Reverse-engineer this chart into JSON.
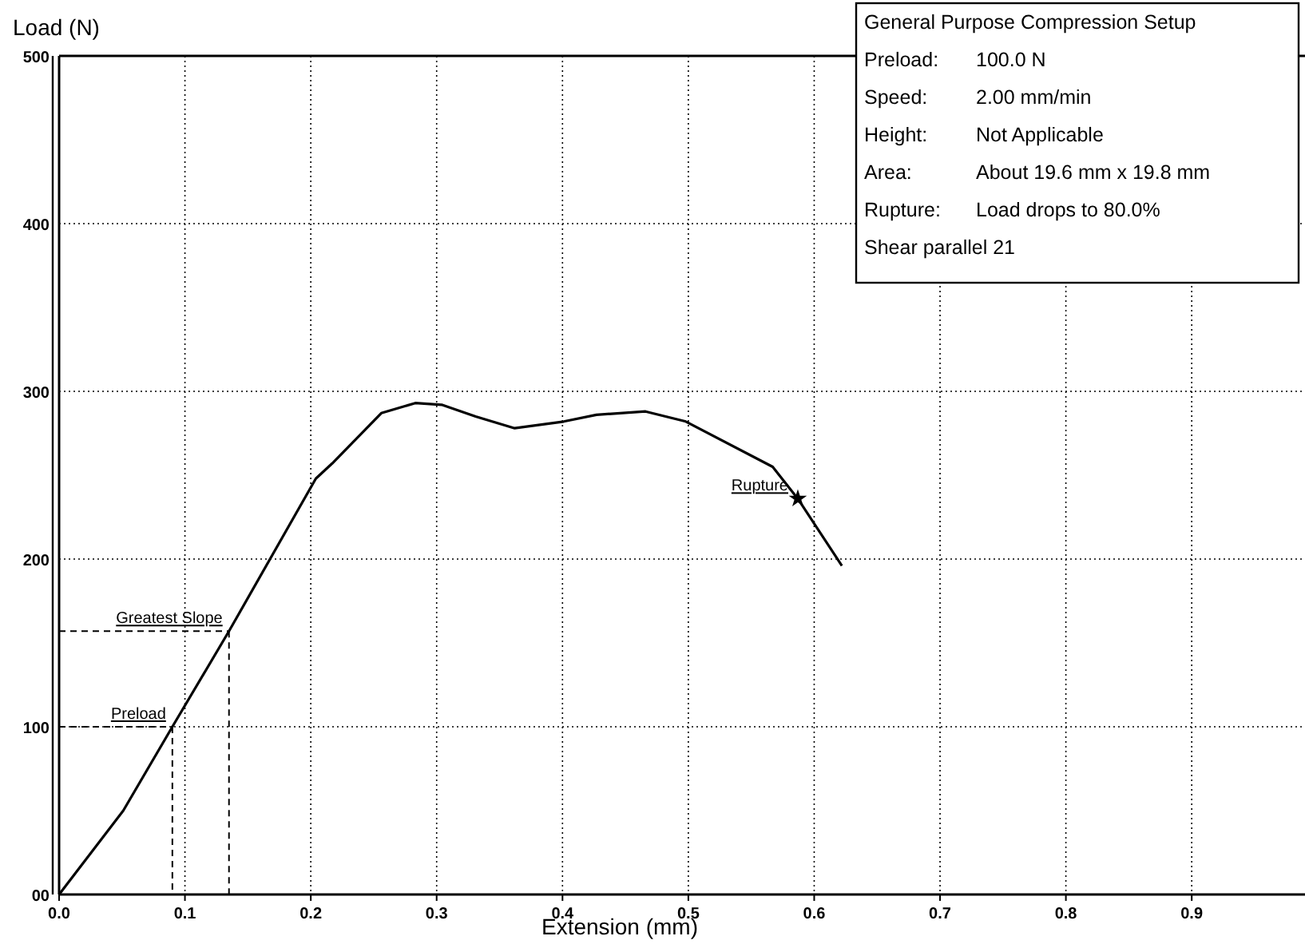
{
  "chart_data": {
    "type": "line",
    "xlabel": "Extension (mm)",
    "ylabel": "Load (N)",
    "x": [
      0,
      0.051,
      0.09,
      0.135,
      0.204,
      0.217,
      0.256,
      0.283,
      0.304,
      0.331,
      0.362,
      0.401,
      0.427,
      0.466,
      0.498,
      0.567,
      0.587,
      0.622
    ],
    "series": [
      {
        "color": "#000000",
        "values": [
          0,
          50,
          100,
          157,
          248,
          257,
          287,
          293,
          292,
          285,
          278,
          282,
          286,
          288,
          282,
          255,
          236,
          196
        ]
      }
    ],
    "xlim": [
      0,
      0.99
    ],
    "ylim": [
      0,
      500
    ],
    "xticks": [
      {
        "value": 0,
        "label": "0.0"
      },
      0.1,
      0.2,
      0.3,
      0.4,
      0.5,
      0.6,
      0.7,
      0.8,
      0.9
    ],
    "yticks": [
      {
        "value": 0,
        "label": "00"
      },
      100,
      200,
      300,
      400,
      500
    ],
    "grid": true,
    "marker": "none",
    "line_style": "solid",
    "annotations": [
      {
        "text": "Preload",
        "x": 0.09,
        "y": 100
      },
      {
        "text": "Greatest Slope",
        "x": 0.135,
        "y": 157
      },
      {
        "text": "Rupture",
        "x": 0.587,
        "y": 236
      },
      "General Purpose Compression Setup",
      "Preload: 100.0 N",
      "Speed: 2.00 mm/min",
      "Height: Not Applicable",
      "Area: About 19.6 mm x 19.8 mm",
      "Rupture: Load drops to 80.0%",
      "Shear parallel 21"
    ]
  }
}
